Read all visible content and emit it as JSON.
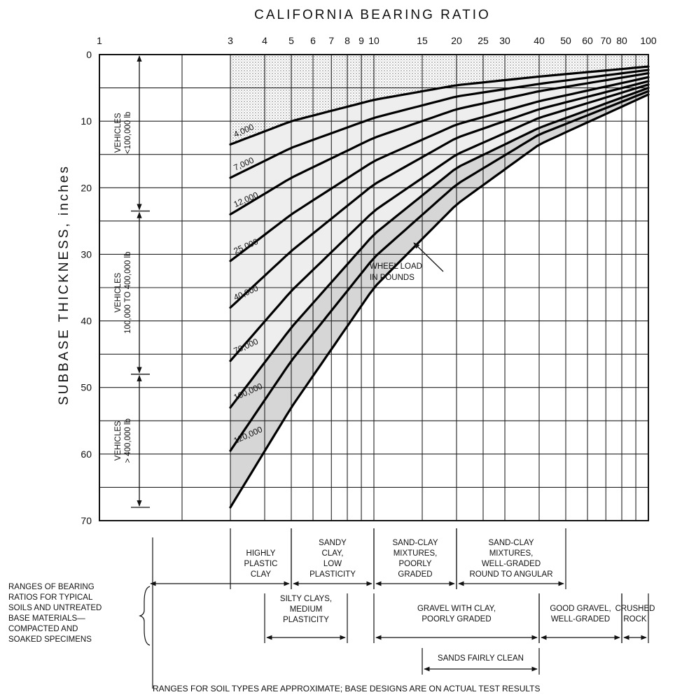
{
  "chart_data": {
    "type": "line",
    "title": "CALIFORNIA BEARING RATIO",
    "xlabel": "",
    "ylabel": "SUBBASE THICKNESS, inches",
    "x_scale": "log",
    "xlim": [
      1,
      100
    ],
    "ylim": [
      0,
      70
    ],
    "y_inverted": true,
    "x_tick_labels": [
      "1",
      "3",
      "4",
      "5",
      "6",
      "7",
      "8",
      "9",
      "10",
      "15",
      "20",
      "25",
      "30",
      "40",
      "50",
      "60",
      "70",
      "80",
      "100"
    ],
    "y_tick_labels": [
      "0",
      "10",
      "20",
      "30",
      "40",
      "50",
      "60",
      "70"
    ],
    "grid": true,
    "legend": "none",
    "series": [
      {
        "name": "4,000",
        "x": [
          3,
          5,
          10,
          20,
          40,
          100
        ],
        "y": [
          13.5,
          10,
          6.8,
          4.6,
          3.3,
          1.8
        ]
      },
      {
        "name": "7,000",
        "x": [
          3,
          5,
          10,
          20,
          40,
          100
        ],
        "y": [
          18.5,
          14,
          9.5,
          6.3,
          4.4,
          2.3
        ]
      },
      {
        "name": "12,000",
        "x": [
          3,
          5,
          10,
          20,
          40,
          100
        ],
        "y": [
          24,
          18.5,
          12.5,
          8.2,
          5.5,
          2.8
        ]
      },
      {
        "name": "25,000",
        "x": [
          3,
          5,
          10,
          20,
          40,
          100
        ],
        "y": [
          31,
          24,
          16,
          10.5,
          7,
          3.4
        ]
      },
      {
        "name": "40,000",
        "x": [
          3,
          5,
          10,
          20,
          40,
          100
        ],
        "y": [
          38,
          29.5,
          19.5,
          12.5,
          8.2,
          4
        ]
      },
      {
        "name": "70,000",
        "x": [
          3,
          5,
          10,
          20,
          40,
          100
        ],
        "y": [
          46,
          35.5,
          23.5,
          15,
          9.5,
          4.5
        ]
      },
      {
        "name": "100,000",
        "x": [
          3,
          5,
          10,
          20,
          40,
          100
        ],
        "y": [
          53,
          41,
          27,
          17,
          11,
          5
        ]
      },
      {
        "name": "120,000",
        "x": [
          3,
          5,
          10,
          20,
          40,
          100
        ],
        "y": [
          59.5,
          46,
          30.5,
          19.5,
          12,
          5.5
        ]
      },
      {
        "name": "",
        "x": [
          3,
          5,
          10,
          20,
          40,
          100
        ],
        "y": [
          68,
          53,
          35,
          22.5,
          13.5,
          6
        ]
      }
    ],
    "vehicle_bands": [
      {
        "label_lines": [
          "VEHICLES",
          "<100,000 lb"
        ],
        "y_from": 0,
        "y_to": 23.5
      },
      {
        "label_lines": [
          "VEHICLES",
          "100,000 TO 400,000 lb"
        ],
        "y_from": 23.5,
        "y_to": 48
      },
      {
        "label_lines": [
          "VEHICLES",
          "> 400,000 lb"
        ],
        "y_from": 48,
        "y_to": 68
      }
    ],
    "annotations": [
      {
        "text_lines": [
          "WHEEL LOAD",
          "IN POUNDS"
        ]
      }
    ],
    "soil_ranges_label": [
      "RANGES OF BEARING",
      "RATIOS FOR TYPICAL",
      "SOILS AND UNTREATED",
      "BASE MATERIALS—",
      "COMPACTED AND",
      "SOAKED SPECIMENS"
    ],
    "soil_ranges": [
      {
        "label_lines": [
          "HIGHLY",
          "PLASTIC",
          "CLAY"
        ],
        "x_from": 3,
        "x_to": 5,
        "row": 1
      },
      {
        "label_lines": [
          "SANDY",
          "CLAY,",
          "LOW",
          "PLASTICITY"
        ],
        "x_from": 5,
        "x_to": 10,
        "row": 1
      },
      {
        "label_lines": [
          "SAND-CLAY",
          "MIXTURES,",
          "POORLY",
          "GRADED"
        ],
        "x_from": 10,
        "x_to": 20,
        "row": 1
      },
      {
        "label_lines": [
          "SAND-CLAY",
          "MIXTURES,",
          "WELL-GRADED",
          "ROUND TO ANGULAR"
        ],
        "x_from": 20,
        "x_to": 50,
        "row": 1
      },
      {
        "label_lines": [
          "SILTY CLAYS,",
          "MEDIUM",
          "PLASTICITY"
        ],
        "x_from": 4,
        "x_to": 8,
        "row": 2
      },
      {
        "label_lines": [
          "GRAVEL WITH CLAY,",
          "POORLY GRADED"
        ],
        "x_from": 10,
        "x_to": 40,
        "row": 2
      },
      {
        "label_lines": [
          "GOOD GRAVEL,",
          "WELL-GRADED"
        ],
        "x_from": 40,
        "x_to": 80,
        "row": 2
      },
      {
        "label_lines": [
          "CRUSHED",
          "ROCK"
        ],
        "x_from": 80,
        "x_to": 100,
        "row": 2
      },
      {
        "label_lines": [
          "SANDS FAIRLY CLEAN"
        ],
        "x_from": 15,
        "x_to": 40,
        "row": 3
      }
    ],
    "footnote": "RANGES FOR SOIL TYPES ARE APPROXIMATE; BASE DESIGNS ARE ON ACTUAL TEST RESULTS"
  }
}
